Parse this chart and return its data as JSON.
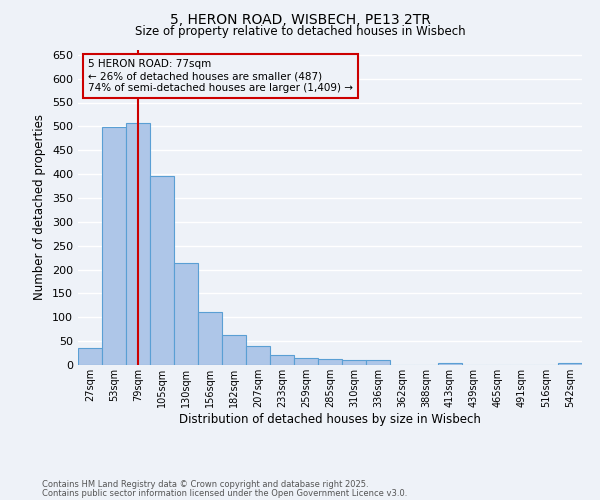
{
  "title1": "5, HERON ROAD, WISBECH, PE13 2TR",
  "title2": "Size of property relative to detached houses in Wisbech",
  "xlabel": "Distribution of detached houses by size in Wisbech",
  "ylabel": "Number of detached properties",
  "categories": [
    "27sqm",
    "53sqm",
    "79sqm",
    "105sqm",
    "130sqm",
    "156sqm",
    "182sqm",
    "207sqm",
    "233sqm",
    "259sqm",
    "285sqm",
    "310sqm",
    "336sqm",
    "362sqm",
    "388sqm",
    "413sqm",
    "439sqm",
    "465sqm",
    "491sqm",
    "516sqm",
    "542sqm"
  ],
  "values": [
    35,
    498,
    508,
    395,
    213,
    111,
    62,
    40,
    20,
    15,
    12,
    10,
    10,
    0,
    0,
    5,
    0,
    0,
    0,
    0,
    5
  ],
  "bar_color": "#aec6e8",
  "bar_edge_color": "#5a9fd4",
  "vline_index": 2,
  "vline_color": "#cc0000",
  "annotation_title": "5 HERON ROAD: 77sqm",
  "annotation_line1": "← 26% of detached houses are smaller (487)",
  "annotation_line2": "74% of semi-detached houses are larger (1,409) →",
  "annotation_box_color": "#cc0000",
  "ylim": [
    0,
    660
  ],
  "yticks": [
    0,
    50,
    100,
    150,
    200,
    250,
    300,
    350,
    400,
    450,
    500,
    550,
    600,
    650
  ],
  "footer1": "Contains HM Land Registry data © Crown copyright and database right 2025.",
  "footer2": "Contains public sector information licensed under the Open Government Licence v3.0.",
  "bg_color": "#eef2f8",
  "grid_color": "#ffffff"
}
